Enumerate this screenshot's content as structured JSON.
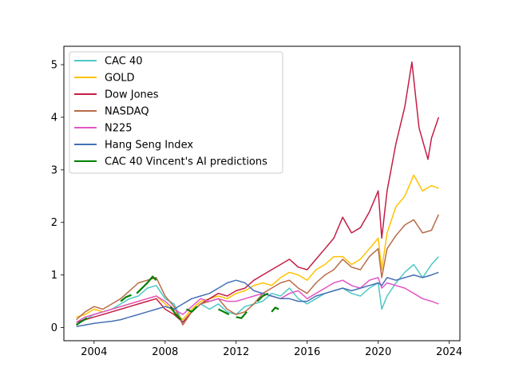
{
  "chart_data": {
    "type": "line",
    "title": "",
    "xlabel": "",
    "ylabel": "",
    "xlim": [
      2002.3,
      2024.6
    ],
    "ylim": [
      -0.25,
      5.35
    ],
    "x_ticks": [
      2004,
      2008,
      2012,
      2016,
      2020,
      2024
    ],
    "y_ticks": [
      0,
      1,
      2,
      3,
      4,
      5
    ],
    "grid": false,
    "legend_position": "upper left",
    "series": [
      {
        "name": "CAC 40",
        "color": "#4ec7c7",
        "x": [
          2003.0,
          2003.5,
          2004.0,
          2004.5,
          2005.0,
          2005.5,
          2006.0,
          2006.5,
          2007.0,
          2007.5,
          2008.0,
          2008.5,
          2009.0,
          2009.5,
          2010.0,
          2010.5,
          2011.0,
          2011.5,
          2012.0,
          2012.5,
          2013.0,
          2013.5,
          2014.0,
          2014.5,
          2015.0,
          2015.5,
          2016.0,
          2016.5,
          2017.0,
          2017.5,
          2018.0,
          2018.5,
          2019.0,
          2019.5,
          2020.0,
          2020.2,
          2020.5,
          2021.0,
          2021.5,
          2022.0,
          2022.5,
          2023.0,
          2023.4
        ],
        "values": [
          0.05,
          0.15,
          0.25,
          0.3,
          0.35,
          0.45,
          0.55,
          0.6,
          0.75,
          0.8,
          0.55,
          0.45,
          0.1,
          0.3,
          0.45,
          0.35,
          0.45,
          0.3,
          0.25,
          0.4,
          0.45,
          0.5,
          0.65,
          0.6,
          0.75,
          0.55,
          0.45,
          0.55,
          0.65,
          0.7,
          0.75,
          0.65,
          0.6,
          0.75,
          0.85,
          0.35,
          0.6,
          0.85,
          1.05,
          1.2,
          0.95,
          1.2,
          1.35
        ]
      },
      {
        "name": "GOLD",
        "color": "#ffc200",
        "x": [
          2003.0,
          2003.5,
          2004.0,
          2004.5,
          2005.0,
          2005.5,
          2006.0,
          2006.5,
          2007.0,
          2007.5,
          2008.0,
          2008.5,
          2009.0,
          2009.5,
          2010.0,
          2010.5,
          2011.0,
          2011.5,
          2012.0,
          2012.5,
          2013.0,
          2013.5,
          2014.0,
          2014.5,
          2015.0,
          2015.5,
          2016.0,
          2016.5,
          2017.0,
          2017.5,
          2018.0,
          2018.5,
          2019.0,
          2019.5,
          2020.0,
          2020.2,
          2020.5,
          2021.0,
          2021.5,
          2022.0,
          2022.5,
          2023.0,
          2023.4
        ],
        "values": [
          0.2,
          0.25,
          0.35,
          0.3,
          0.35,
          0.4,
          0.45,
          0.5,
          0.55,
          0.6,
          0.45,
          0.3,
          0.15,
          0.35,
          0.5,
          0.55,
          0.6,
          0.55,
          0.65,
          0.7,
          0.8,
          0.85,
          0.8,
          0.95,
          1.05,
          1.0,
          0.9,
          1.1,
          1.2,
          1.35,
          1.35,
          1.2,
          1.3,
          1.5,
          1.7,
          1.1,
          1.8,
          2.3,
          2.5,
          2.9,
          2.6,
          2.7,
          2.65
        ]
      },
      {
        "name": "Dow Jones",
        "color": "#c41e46",
        "x": [
          2003.0,
          2003.5,
          2004.0,
          2004.5,
          2005.0,
          2005.5,
          2006.0,
          2006.5,
          2007.0,
          2007.5,
          2008.0,
          2008.5,
          2009.0,
          2009.5,
          2010.0,
          2010.5,
          2011.0,
          2011.5,
          2012.0,
          2012.5,
          2013.0,
          2013.5,
          2014.0,
          2014.5,
          2015.0,
          2015.5,
          2016.0,
          2016.5,
          2017.0,
          2017.5,
          2018.0,
          2018.5,
          2019.0,
          2019.5,
          2020.0,
          2020.2,
          2020.5,
          2021.0,
          2021.5,
          2021.9,
          2022.3,
          2022.8,
          2023.0,
          2023.4
        ],
        "values": [
          0.1,
          0.15,
          0.2,
          0.25,
          0.3,
          0.35,
          0.4,
          0.45,
          0.5,
          0.55,
          0.35,
          0.25,
          0.1,
          0.3,
          0.45,
          0.55,
          0.65,
          0.6,
          0.7,
          0.75,
          0.9,
          1.0,
          1.1,
          1.2,
          1.3,
          1.15,
          1.1,
          1.3,
          1.5,
          1.7,
          2.1,
          1.8,
          1.9,
          2.2,
          2.6,
          1.7,
          2.6,
          3.5,
          4.2,
          5.05,
          3.8,
          3.2,
          3.6,
          4.0
        ]
      },
      {
        "name": "NASDAQ",
        "color": "#b86c48",
        "x": [
          2003.0,
          2003.5,
          2004.0,
          2004.5,
          2005.0,
          2005.5,
          2006.0,
          2006.5,
          2007.0,
          2007.5,
          2008.0,
          2008.5,
          2009.0,
          2009.5,
          2010.0,
          2010.5,
          2011.0,
          2011.5,
          2012.0,
          2012.5,
          2013.0,
          2013.5,
          2014.0,
          2014.5,
          2015.0,
          2015.5,
          2016.0,
          2016.5,
          2017.0,
          2017.5,
          2018.0,
          2018.5,
          2019.0,
          2019.5,
          2020.0,
          2020.2,
          2020.5,
          2021.0,
          2021.5,
          2022.0,
          2022.5,
          2023.0,
          2023.4
        ],
        "values": [
          0.15,
          0.3,
          0.4,
          0.35,
          0.45,
          0.55,
          0.7,
          0.85,
          0.9,
          0.95,
          0.6,
          0.4,
          0.05,
          0.3,
          0.45,
          0.5,
          0.55,
          0.35,
          0.25,
          0.3,
          0.45,
          0.65,
          0.75,
          0.85,
          0.9,
          0.75,
          0.65,
          0.85,
          1.0,
          1.1,
          1.3,
          1.15,
          1.1,
          1.35,
          1.5,
          0.95,
          1.5,
          1.75,
          1.95,
          2.05,
          1.8,
          1.85,
          2.15
        ]
      },
      {
        "name": "N225",
        "color": "#e256c4",
        "x": [
          2003.0,
          2003.5,
          2004.0,
          2004.5,
          2005.0,
          2005.5,
          2006.0,
          2006.5,
          2007.0,
          2007.5,
          2008.0,
          2008.5,
          2009.0,
          2009.5,
          2010.0,
          2010.5,
          2011.0,
          2011.5,
          2012.0,
          2012.5,
          2013.0,
          2013.5,
          2014.0,
          2014.5,
          2015.0,
          2015.5,
          2016.0,
          2016.5,
          2017.0,
          2017.5,
          2018.0,
          2018.5,
          2019.0,
          2019.5,
          2020.0,
          2020.2,
          2020.5,
          2021.0,
          2021.5,
          2022.0,
          2022.5,
          2023.0,
          2023.4
        ],
        "values": [
          0.1,
          0.2,
          0.25,
          0.3,
          0.35,
          0.4,
          0.45,
          0.5,
          0.55,
          0.6,
          0.5,
          0.35,
          0.25,
          0.4,
          0.55,
          0.5,
          0.55,
          0.5,
          0.5,
          0.55,
          0.6,
          0.65,
          0.6,
          0.55,
          0.65,
          0.7,
          0.55,
          0.65,
          0.75,
          0.85,
          0.9,
          0.8,
          0.75,
          0.9,
          0.95,
          0.75,
          0.85,
          0.8,
          0.75,
          0.65,
          0.55,
          0.5,
          0.45
        ]
      },
      {
        "name": "Hang Seng Index",
        "color": "#4670b4",
        "x": [
          2003.0,
          2003.5,
          2004.0,
          2004.5,
          2005.0,
          2005.5,
          2006.0,
          2006.5,
          2007.0,
          2007.5,
          2008.0,
          2008.5,
          2009.0,
          2009.5,
          2010.0,
          2010.5,
          2011.0,
          2011.5,
          2012.0,
          2012.5,
          2013.0,
          2013.5,
          2014.0,
          2014.5,
          2015.0,
          2015.5,
          2016.0,
          2016.5,
          2017.0,
          2017.5,
          2018.0,
          2018.5,
          2019.0,
          2019.5,
          2020.0,
          2020.2,
          2020.5,
          2021.0,
          2021.5,
          2022.0,
          2022.5,
          2023.0,
          2023.4
        ],
        "values": [
          0.02,
          0.05,
          0.08,
          0.1,
          0.12,
          0.15,
          0.2,
          0.25,
          0.3,
          0.35,
          0.4,
          0.35,
          0.45,
          0.55,
          0.6,
          0.65,
          0.75,
          0.85,
          0.9,
          0.85,
          0.7,
          0.65,
          0.6,
          0.55,
          0.55,
          0.5,
          0.5,
          0.6,
          0.65,
          0.7,
          0.75,
          0.7,
          0.75,
          0.8,
          0.85,
          0.8,
          0.95,
          0.9,
          0.95,
          1.0,
          0.95,
          1.0,
          1.05
        ]
      },
      {
        "name": "CAC 40 Vincent's AI predictions",
        "color": "#008000",
        "segments": [
          {
            "x": [
              2003.0,
              2003.3,
              2003.6
            ],
            "values": [
              0.05,
              0.12,
              0.18
            ]
          },
          {
            "x": [
              2005.5,
              2005.8,
              2006.1
            ],
            "values": [
              0.5,
              0.58,
              0.62
            ]
          },
          {
            "x": [
              2006.4,
              2006.7,
              2007.0,
              2007.3,
              2007.5
            ],
            "values": [
              0.65,
              0.75,
              0.85,
              0.97,
              0.9
            ]
          },
          {
            "x": [
              2008.3,
              2008.6,
              2008.9
            ],
            "values": [
              0.4,
              0.25,
              0.15
            ]
          },
          {
            "x": [
              2009.2,
              2009.5,
              2009.8
            ],
            "values": [
              0.35,
              0.3,
              0.4
            ]
          },
          {
            "x": [
              2011.0,
              2011.3,
              2011.6
            ],
            "values": [
              0.35,
              0.3,
              0.25
            ]
          },
          {
            "x": [
              2012.0,
              2012.3,
              2012.6
            ],
            "values": [
              0.2,
              0.18,
              0.3
            ]
          },
          {
            "x": [
              2013.2,
              2013.5,
              2013.8
            ],
            "values": [
              0.5,
              0.6,
              0.65
            ]
          },
          {
            "x": [
              2014.0,
              2014.2,
              2014.4
            ],
            "values": [
              0.3,
              0.38,
              0.35
            ]
          }
        ]
      }
    ]
  }
}
